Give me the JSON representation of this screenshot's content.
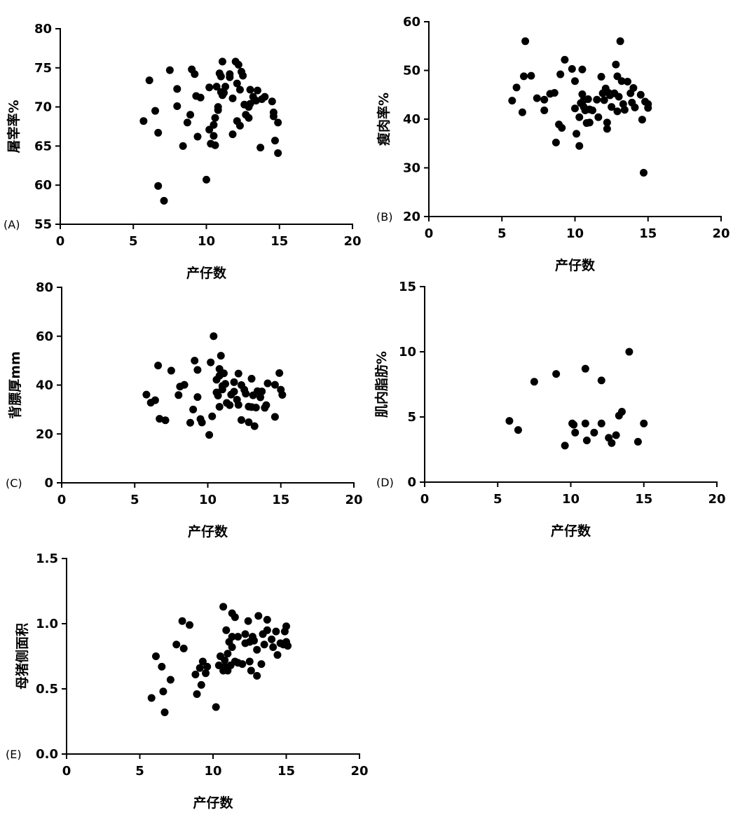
{
  "chart_data": [
    {
      "type": "scatter",
      "panel_label": "(A)",
      "xlabel": "产仔数",
      "ylabel": "屠宰率%",
      "xlim": [
        0,
        20
      ],
      "ylim": [
        55,
        80
      ],
      "xticks": [
        0,
        5,
        10,
        15,
        20
      ],
      "yticks": [
        55,
        60,
        65,
        70,
        75,
        80
      ],
      "grid": false,
      "color": "#000000",
      "points": [
        [
          5.7,
          68.2
        ],
        [
          6.1,
          73.4
        ],
        [
          6.5,
          69.5
        ],
        [
          6.7,
          66.7
        ],
        [
          6.7,
          59.9
        ],
        [
          7.1,
          58.0
        ],
        [
          7.5,
          74.7
        ],
        [
          8.0,
          72.3
        ],
        [
          8.0,
          70.1
        ],
        [
          8.4,
          65.0
        ],
        [
          8.7,
          68.0
        ],
        [
          8.9,
          69.0
        ],
        [
          9.0,
          74.8
        ],
        [
          9.2,
          74.2
        ],
        [
          9.3,
          71.4
        ],
        [
          9.4,
          66.2
        ],
        [
          9.6,
          71.2
        ],
        [
          10.0,
          60.7
        ],
        [
          10.2,
          72.5
        ],
        [
          10.2,
          67.1
        ],
        [
          10.3,
          65.3
        ],
        [
          10.5,
          67.7
        ],
        [
          10.5,
          66.3
        ],
        [
          10.6,
          68.6
        ],
        [
          10.6,
          65.1
        ],
        [
          10.7,
          72.6
        ],
        [
          10.8,
          70.0
        ],
        [
          10.8,
          69.6
        ],
        [
          10.9,
          74.3
        ],
        [
          11.0,
          73.9
        ],
        [
          11.0,
          71.9
        ],
        [
          11.1,
          75.8
        ],
        [
          11.1,
          71.5
        ],
        [
          11.2,
          71.8
        ],
        [
          11.3,
          72.6
        ],
        [
          11.6,
          73.8
        ],
        [
          11.6,
          74.2
        ],
        [
          11.8,
          66.5
        ],
        [
          11.8,
          71.1
        ],
        [
          12.0,
          75.8
        ],
        [
          12.1,
          73.0
        ],
        [
          12.1,
          68.2
        ],
        [
          12.2,
          75.4
        ],
        [
          12.3,
          72.2
        ],
        [
          12.3,
          67.6
        ],
        [
          12.4,
          74.5
        ],
        [
          12.5,
          74.0
        ],
        [
          12.6,
          70.3
        ],
        [
          12.7,
          69.0
        ],
        [
          12.9,
          70.0
        ],
        [
          12.9,
          68.6
        ],
        [
          13.0,
          72.2
        ],
        [
          13.0,
          70.4
        ],
        [
          13.2,
          71.3
        ],
        [
          13.4,
          70.8
        ],
        [
          13.5,
          72.1
        ],
        [
          13.7,
          64.8
        ],
        [
          13.8,
          71.0
        ],
        [
          14.0,
          71.3
        ],
        [
          14.5,
          70.7
        ],
        [
          14.6,
          69.3
        ],
        [
          14.6,
          68.8
        ],
        [
          14.7,
          65.7
        ],
        [
          14.9,
          68.0
        ],
        [
          14.9,
          64.1
        ]
      ]
    },
    {
      "type": "scatter",
      "panel_label": "(B)",
      "xlabel": "产仔数",
      "ylabel": "瘦肉率%",
      "xlim": [
        0,
        20
      ],
      "ylim": [
        20,
        60
      ],
      "xticks": [
        0,
        5,
        10,
        15,
        20
      ],
      "yticks": [
        20,
        30,
        40,
        50,
        60
      ],
      "grid": false,
      "color": "#000000",
      "points": [
        [
          5.7,
          43.8
        ],
        [
          6.0,
          46.5
        ],
        [
          6.4,
          41.4
        ],
        [
          6.5,
          48.8
        ],
        [
          6.6,
          56.0
        ],
        [
          7.0,
          48.9
        ],
        [
          7.4,
          44.3
        ],
        [
          7.9,
          41.8
        ],
        [
          7.9,
          44.0
        ],
        [
          8.3,
          45.2
        ],
        [
          8.6,
          45.4
        ],
        [
          8.7,
          35.2
        ],
        [
          8.9,
          38.9
        ],
        [
          9.0,
          49.2
        ],
        [
          9.1,
          38.2
        ],
        [
          9.3,
          52.2
        ],
        [
          9.8,
          50.3
        ],
        [
          10.0,
          47.8
        ],
        [
          10.0,
          42.2
        ],
        [
          10.1,
          37.0
        ],
        [
          10.3,
          34.5
        ],
        [
          10.3,
          40.4
        ],
        [
          10.4,
          43.3
        ],
        [
          10.5,
          50.2
        ],
        [
          10.5,
          45.1
        ],
        [
          10.6,
          42.5
        ],
        [
          10.6,
          43.9
        ],
        [
          10.7,
          41.8
        ],
        [
          10.8,
          39.2
        ],
        [
          10.9,
          44.1
        ],
        [
          11.0,
          39.3
        ],
        [
          11.0,
          42.0
        ],
        [
          11.2,
          41.8
        ],
        [
          11.5,
          44.0
        ],
        [
          11.6,
          40.4
        ],
        [
          11.8,
          48.7
        ],
        [
          11.9,
          45.3
        ],
        [
          12.0,
          43.9
        ],
        [
          12.1,
          46.3
        ],
        [
          12.2,
          38.0
        ],
        [
          12.2,
          39.3
        ],
        [
          12.3,
          45.4
        ],
        [
          12.4,
          44.9
        ],
        [
          12.5,
          42.5
        ],
        [
          12.7,
          45.3
        ],
        [
          12.8,
          51.2
        ],
        [
          12.9,
          48.8
        ],
        [
          12.9,
          41.6
        ],
        [
          13.0,
          44.6
        ],
        [
          13.1,
          56.0
        ],
        [
          13.2,
          47.8
        ],
        [
          13.3,
          43.1
        ],
        [
          13.4,
          41.9
        ],
        [
          13.6,
          47.7
        ],
        [
          13.8,
          45.3
        ],
        [
          13.9,
          43.4
        ],
        [
          14.0,
          46.4
        ],
        [
          14.1,
          42.4
        ],
        [
          14.5,
          45.0
        ],
        [
          14.6,
          39.9
        ],
        [
          14.7,
          29.0
        ],
        [
          14.8,
          43.6
        ],
        [
          15.0,
          42.3
        ],
        [
          15.0,
          43.1
        ]
      ]
    },
    {
      "type": "scatter",
      "panel_label": "(C)",
      "xlabel": "产仔数",
      "ylabel": "背膘厚mm",
      "xlim": [
        0,
        20
      ],
      "ylim": [
        0,
        80
      ],
      "xticks": [
        0,
        5,
        10,
        15,
        20
      ],
      "yticks": [
        0,
        20,
        40,
        60,
        80
      ],
      "grid": false,
      "color": "#000000",
      "points": [
        [
          5.8,
          36.1
        ],
        [
          6.1,
          32.8
        ],
        [
          6.4,
          33.8
        ],
        [
          6.6,
          48.0
        ],
        [
          6.7,
          26.2
        ],
        [
          7.1,
          25.6
        ],
        [
          7.5,
          45.9
        ],
        [
          8.0,
          35.9
        ],
        [
          8.1,
          39.4
        ],
        [
          8.4,
          40.1
        ],
        [
          8.8,
          24.6
        ],
        [
          9.0,
          30.0
        ],
        [
          9.1,
          50.0
        ],
        [
          9.3,
          46.2
        ],
        [
          9.3,
          35.1
        ],
        [
          9.5,
          26.1
        ],
        [
          9.6,
          24.7
        ],
        [
          10.1,
          19.6
        ],
        [
          10.2,
          49.3
        ],
        [
          10.3,
          27.2
        ],
        [
          10.4,
          60.0
        ],
        [
          10.6,
          42.2
        ],
        [
          10.6,
          37.0
        ],
        [
          10.7,
          35.7
        ],
        [
          10.8,
          46.6
        ],
        [
          10.8,
          43.8
        ],
        [
          10.8,
          31.1
        ],
        [
          10.9,
          52.0
        ],
        [
          11.0,
          39.6
        ],
        [
          11.0,
          38.2
        ],
        [
          11.1,
          44.8
        ],
        [
          11.2,
          40.5
        ],
        [
          11.3,
          32.7
        ],
        [
          11.5,
          31.8
        ],
        [
          11.6,
          36.1
        ],
        [
          11.8,
          37.3
        ],
        [
          11.8,
          41.2
        ],
        [
          12.0,
          34.0
        ],
        [
          12.1,
          44.7
        ],
        [
          12.1,
          31.9
        ],
        [
          12.3,
          25.7
        ],
        [
          12.3,
          40.0
        ],
        [
          12.5,
          38.1
        ],
        [
          12.6,
          36.5
        ],
        [
          12.8,
          31.2
        ],
        [
          12.8,
          24.8
        ],
        [
          13.0,
          42.6
        ],
        [
          13.0,
          31.0
        ],
        [
          13.1,
          35.8
        ],
        [
          13.2,
          23.2
        ],
        [
          13.3,
          30.8
        ],
        [
          13.4,
          37.5
        ],
        [
          13.6,
          35.0
        ],
        [
          13.7,
          37.4
        ],
        [
          13.9,
          30.7
        ],
        [
          14.0,
          31.8
        ],
        [
          14.1,
          40.7
        ],
        [
          14.6,
          27.0
        ],
        [
          14.6,
          40.1
        ],
        [
          14.9,
          44.9
        ],
        [
          15.0,
          38.1
        ],
        [
          15.1,
          36.0
        ]
      ]
    },
    {
      "type": "scatter",
      "panel_label": "(D)",
      "xlabel": "产仔数",
      "ylabel": "肌内脂肪%",
      "xlim": [
        0,
        20
      ],
      "ylim": [
        0,
        15
      ],
      "xticks": [
        0,
        5,
        10,
        15,
        20
      ],
      "yticks": [
        0,
        5,
        10,
        15
      ],
      "grid": false,
      "color": "#000000",
      "points": [
        [
          5.8,
          4.7
        ],
        [
          6.4,
          4.0
        ],
        [
          7.5,
          7.7
        ],
        [
          9.0,
          8.3
        ],
        [
          9.6,
          2.8
        ],
        [
          10.1,
          4.5
        ],
        [
          10.2,
          4.4
        ],
        [
          10.3,
          3.8
        ],
        [
          11.0,
          8.7
        ],
        [
          11.0,
          4.5
        ],
        [
          11.1,
          3.2
        ],
        [
          11.6,
          3.8
        ],
        [
          12.1,
          7.8
        ],
        [
          12.1,
          4.5
        ],
        [
          12.6,
          3.4
        ],
        [
          12.8,
          3.0
        ],
        [
          13.1,
          3.6
        ],
        [
          13.3,
          5.1
        ],
        [
          13.5,
          5.4
        ],
        [
          14.0,
          10.0
        ],
        [
          14.6,
          3.1
        ],
        [
          15.0,
          4.5
        ]
      ]
    },
    {
      "type": "scatter",
      "panel_label": "(E)",
      "xlabel": "产仔数",
      "ylabel": "母猪侧面积",
      "xlim": [
        0,
        20
      ],
      "ylim": [
        0.0,
        1.5
      ],
      "xticks": [
        0,
        5,
        10,
        15,
        20
      ],
      "yticks": [
        "0.0",
        "0.5",
        "1.0",
        "1.5"
      ],
      "grid": false,
      "color": "#000000",
      "points": [
        [
          5.8,
          0.43
        ],
        [
          6.1,
          0.75
        ],
        [
          6.5,
          0.67
        ],
        [
          6.6,
          0.48
        ],
        [
          6.7,
          0.32
        ],
        [
          7.1,
          0.57
        ],
        [
          7.5,
          0.84
        ],
        [
          7.9,
          1.02
        ],
        [
          8.0,
          0.81
        ],
        [
          8.4,
          0.99
        ],
        [
          8.8,
          0.61
        ],
        [
          8.9,
          0.46
        ],
        [
          9.1,
          0.66
        ],
        [
          9.2,
          0.53
        ],
        [
          9.3,
          0.71
        ],
        [
          9.5,
          0.62
        ],
        [
          9.6,
          0.67
        ],
        [
          10.2,
          0.36
        ],
        [
          10.4,
          0.68
        ],
        [
          10.5,
          0.75
        ],
        [
          10.7,
          0.64
        ],
        [
          10.7,
          1.13
        ],
        [
          10.8,
          0.72
        ],
        [
          10.8,
          0.67
        ],
        [
          10.9,
          0.95
        ],
        [
          11.0,
          0.77
        ],
        [
          11.0,
          0.64
        ],
        [
          11.1,
          0.86
        ],
        [
          11.2,
          0.68
        ],
        [
          11.3,
          1.08
        ],
        [
          11.3,
          0.9
        ],
        [
          11.3,
          0.82
        ],
        [
          11.5,
          1.05
        ],
        [
          11.5,
          0.71
        ],
        [
          11.7,
          0.7
        ],
        [
          11.7,
          0.9
        ],
        [
          12.0,
          0.69
        ],
        [
          12.2,
          0.85
        ],
        [
          12.2,
          0.92
        ],
        [
          12.4,
          1.02
        ],
        [
          12.5,
          0.71
        ],
        [
          12.5,
          0.86
        ],
        [
          12.6,
          0.64
        ],
        [
          12.7,
          0.9
        ],
        [
          12.8,
          0.87
        ],
        [
          13.0,
          0.8
        ],
        [
          13.0,
          0.6
        ],
        [
          13.1,
          1.06
        ],
        [
          13.3,
          0.69
        ],
        [
          13.4,
          0.92
        ],
        [
          13.5,
          0.84
        ],
        [
          13.7,
          0.95
        ],
        [
          13.7,
          1.03
        ],
        [
          14.0,
          0.88
        ],
        [
          14.1,
          0.82
        ],
        [
          14.3,
          0.94
        ],
        [
          14.4,
          0.76
        ],
        [
          14.6,
          0.85
        ],
        [
          14.8,
          0.84
        ],
        [
          14.9,
          0.94
        ],
        [
          15.0,
          0.98
        ],
        [
          15.0,
          0.86
        ],
        [
          15.1,
          0.83
        ]
      ]
    }
  ]
}
